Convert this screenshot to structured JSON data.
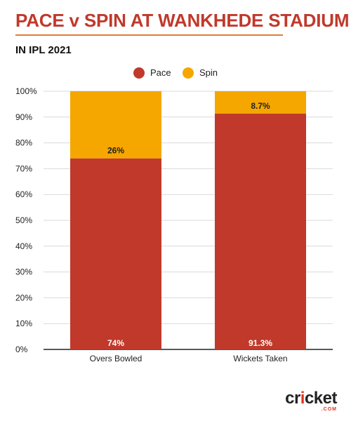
{
  "chart_data": {
    "type": "bar",
    "stacked": true,
    "title": "PACE v SPIN AT WANKHEDE STADIUM",
    "subtitle": "IN IPL 2021",
    "categories": [
      "Overs Bowled",
      "Wickets Taken"
    ],
    "series": [
      {
        "name": "Pace",
        "color": "#c0392b",
        "values": [
          74,
          91.3
        ],
        "labels": [
          "74%",
          "91.3%"
        ]
      },
      {
        "name": "Spin",
        "color": "#f5a700",
        "values": [
          26,
          8.7
        ],
        "labels": [
          "26%",
          "8.7%"
        ]
      }
    ],
    "ylim": [
      0,
      100
    ],
    "yticks": [
      "0%",
      "10%",
      "20%",
      "30%",
      "40%",
      "50%",
      "60%",
      "70%",
      "80%",
      "90%",
      "100%"
    ],
    "grid": true,
    "legend": "top-center"
  },
  "brand": {
    "name": "cricket",
    "sub": ".COM",
    "accent": "#e2321e"
  }
}
